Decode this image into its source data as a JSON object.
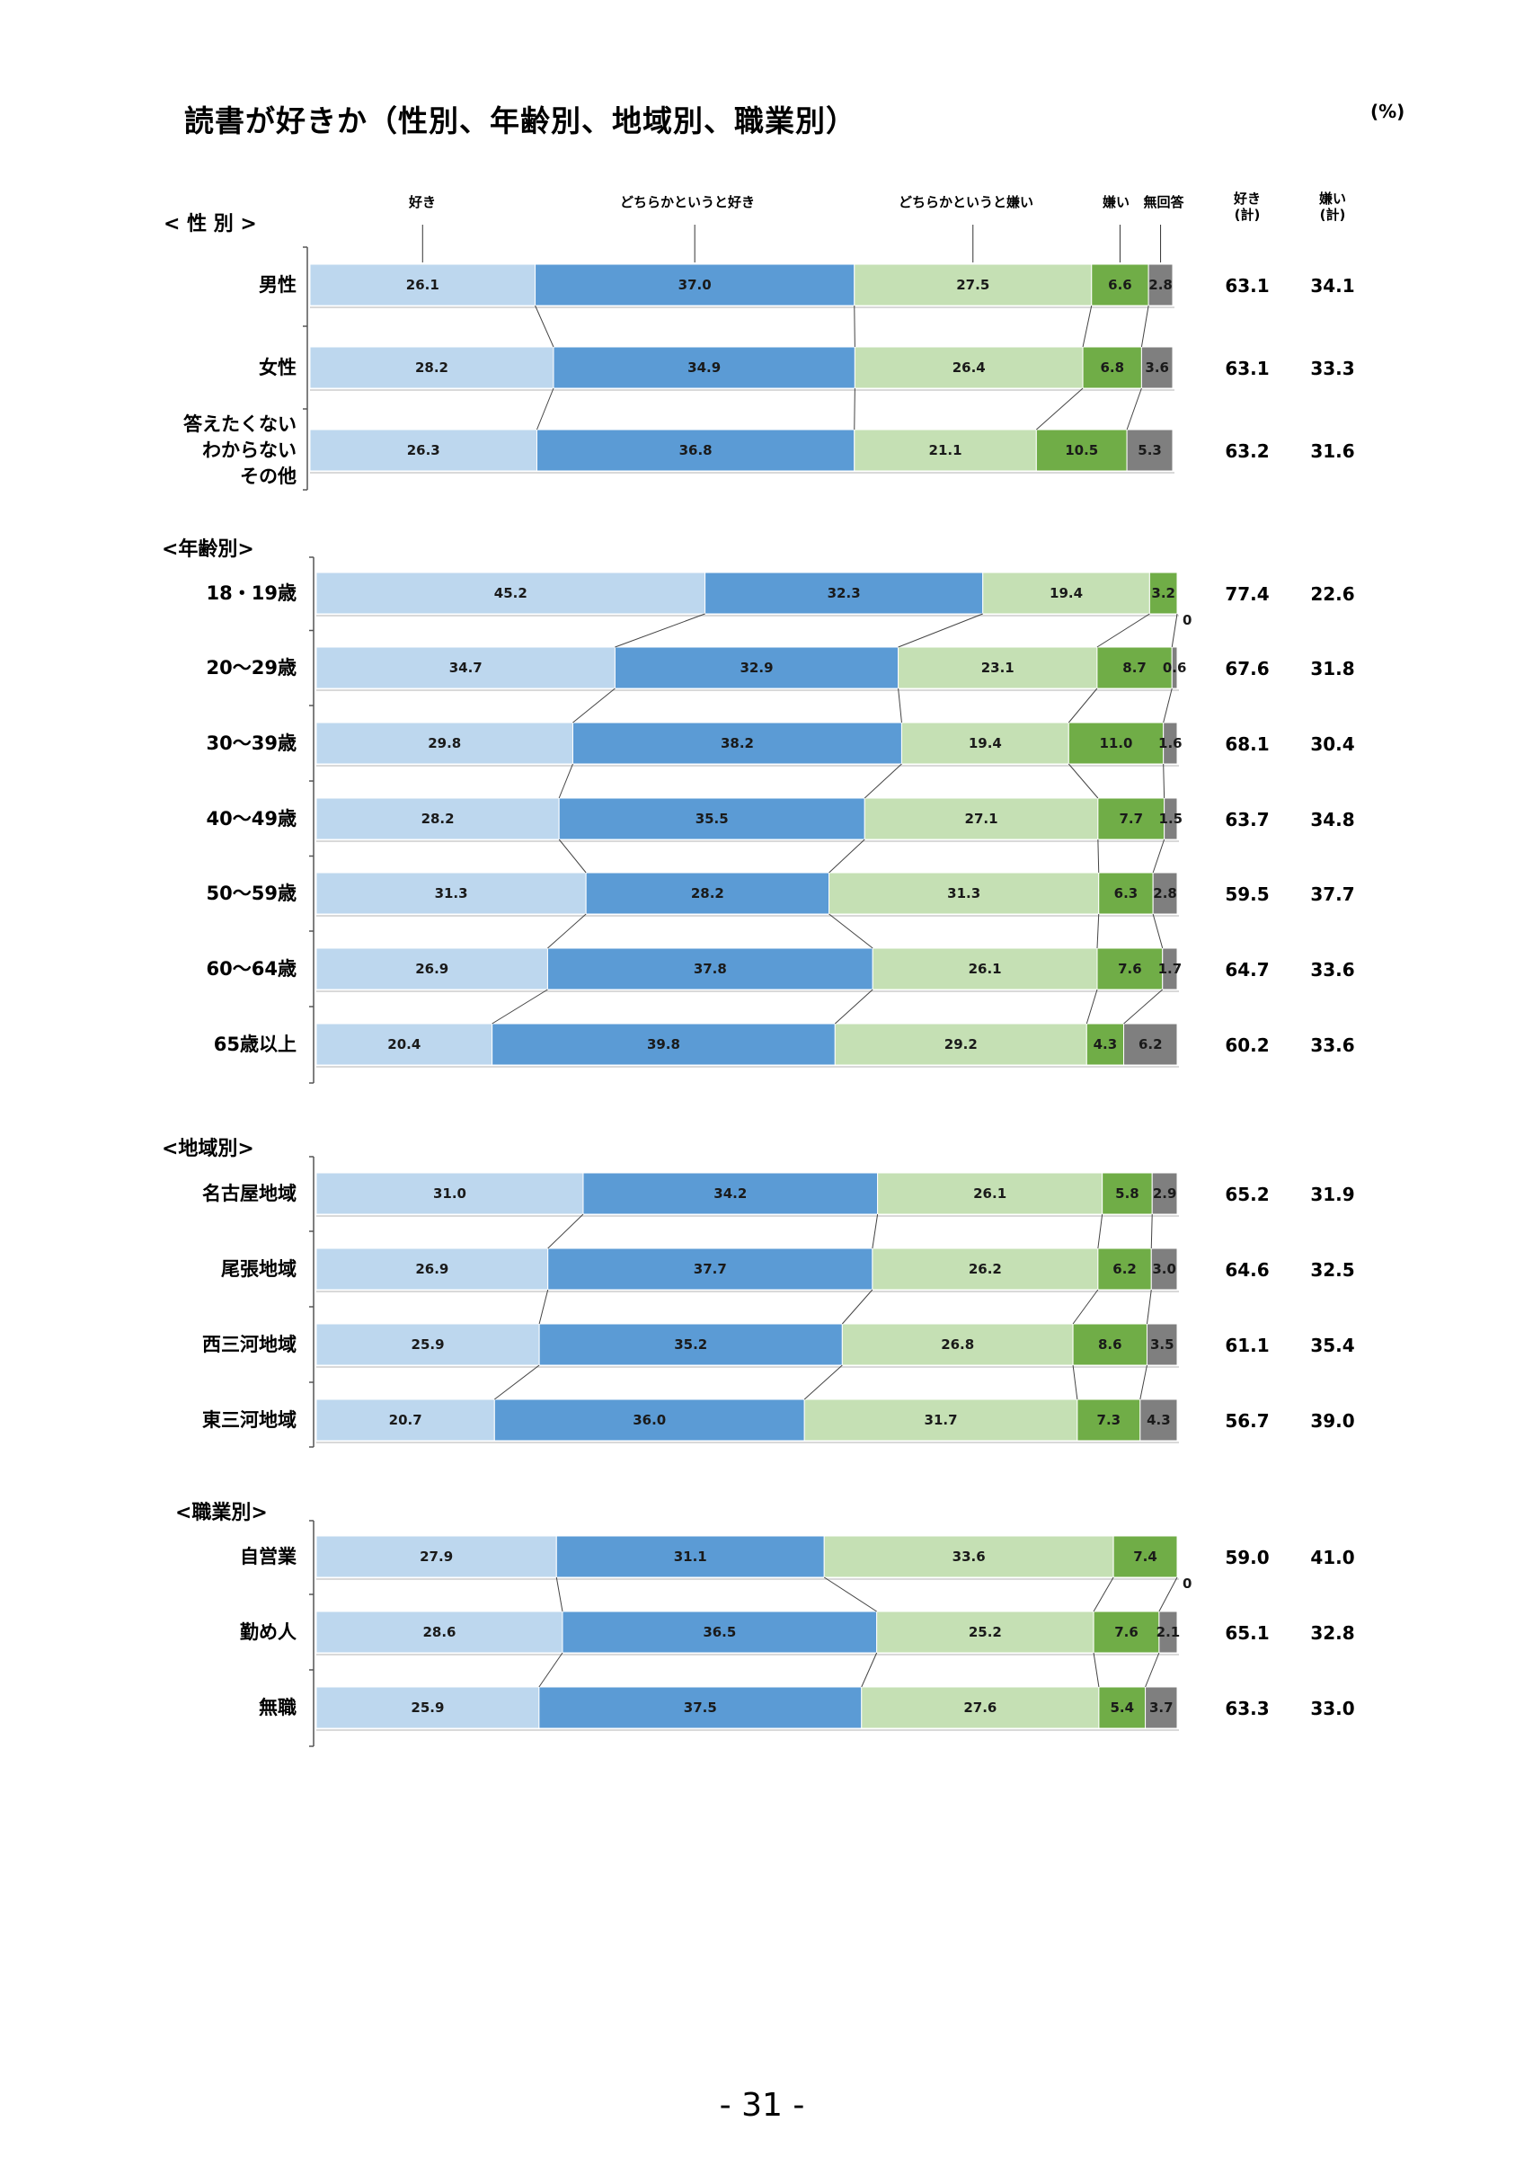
{
  "page": {
    "title": "読書が好きか（性別、年齢別、地域別、職業別）",
    "unit": "(%)",
    "page_number": "- 31 -"
  },
  "chart_data": {
    "type": "bar",
    "orientation": "horizontal",
    "stacked": true,
    "percent_stacked": true,
    "title": "読書が好きか（性別、年齢別、地域別、職業別）",
    "unit": "%",
    "categories": [
      "好き",
      "どちらかというと好き",
      "どちらかというと嫌い",
      "嫌い",
      "無回答"
    ],
    "colors": [
      "#bdd7ee",
      "#5b9bd5",
      "#c5e0b4",
      "#70ad47",
      "#7f7f7f"
    ],
    "summary_headers": [
      [
        "好き",
        "(計)"
      ],
      [
        "嫌い",
        "(計)"
      ]
    ],
    "groups": [
      {
        "title": "< 性 別 >",
        "rows": [
          {
            "label": [
              "男性"
            ],
            "values": [
              26.1,
              37.0,
              27.5,
              6.6,
              2.8
            ],
            "value_labels": [
              "26.1",
              "37.0",
              "27.5",
              "6.6",
              "2.8"
            ],
            "like_total": "63.1",
            "dislike_total": "34.1"
          },
          {
            "label": [
              "女性"
            ],
            "values": [
              28.2,
              34.9,
              26.4,
              6.8,
              3.6
            ],
            "value_labels": [
              "28.2",
              "34.9",
              "26.4",
              "6.8",
              "3.6"
            ],
            "like_total": "63.1",
            "dislike_total": "33.3"
          },
          {
            "label": [
              "答えたくない",
              "わからない",
              "その他"
            ],
            "values": [
              26.3,
              36.8,
              21.1,
              10.5,
              5.3
            ],
            "value_labels": [
              "26.3",
              "36.8",
              "21.1",
              "10.5",
              "5.3"
            ],
            "like_total": "63.2",
            "dislike_total": "31.6"
          }
        ]
      },
      {
        "title": "<年齢別>",
        "rows": [
          {
            "label": [
              "18・19歳"
            ],
            "values": [
              45.2,
              32.3,
              19.4,
              3.2,
              0
            ],
            "value_labels": [
              "45.2",
              "32.3",
              "19.4",
              "3.2",
              "0"
            ],
            "like_total": "77.4",
            "dislike_total": "22.6"
          },
          {
            "label": [
              "20～29歳"
            ],
            "values": [
              34.7,
              32.9,
              23.1,
              8.7,
              0.6
            ],
            "value_labels": [
              "34.7",
              "32.9",
              "23.1",
              "8.7",
              "0.6"
            ],
            "like_total": "67.6",
            "dislike_total": "31.8"
          },
          {
            "label": [
              "30～39歳"
            ],
            "values": [
              29.8,
              38.2,
              19.4,
              11.0,
              1.6
            ],
            "value_labels": [
              "29.8",
              "38.2",
              "19.4",
              "11.0",
              "1.6"
            ],
            "like_total": "68.1",
            "dislike_total": "30.4"
          },
          {
            "label": [
              "40～49歳"
            ],
            "values": [
              28.2,
              35.5,
              27.1,
              7.7,
              1.5
            ],
            "value_labels": [
              "28.2",
              "35.5",
              "27.1",
              "7.7",
              "1.5"
            ],
            "like_total": "63.7",
            "dislike_total": "34.8"
          },
          {
            "label": [
              "50～59歳"
            ],
            "values": [
              31.3,
              28.2,
              31.3,
              6.3,
              2.8
            ],
            "value_labels": [
              "31.3",
              "28.2",
              "31.3",
              "6.3",
              "2.8"
            ],
            "like_total": "59.5",
            "dislike_total": "37.7"
          },
          {
            "label": [
              "60～64歳"
            ],
            "values": [
              26.9,
              37.8,
              26.1,
              7.6,
              1.7
            ],
            "value_labels": [
              "26.9",
              "37.8",
              "26.1",
              "7.6",
              "1.7"
            ],
            "like_total": "64.7",
            "dislike_total": "33.6"
          },
          {
            "label": [
              "65歳以上"
            ],
            "values": [
              20.4,
              39.8,
              29.2,
              4.3,
              6.2
            ],
            "value_labels": [
              "20.4",
              "39.8",
              "29.2",
              "4.3",
              "6.2"
            ],
            "like_total": "60.2",
            "dislike_total": "33.6"
          }
        ]
      },
      {
        "title": "<地域別>",
        "rows": [
          {
            "label": [
              "名古屋地域"
            ],
            "values": [
              31.0,
              34.2,
              26.1,
              5.8,
              2.9
            ],
            "value_labels": [
              "31.0",
              "34.2",
              "26.1",
              "5.8",
              "2.9"
            ],
            "like_total": "65.2",
            "dislike_total": "31.9"
          },
          {
            "label": [
              "尾張地域"
            ],
            "values": [
              26.9,
              37.7,
              26.2,
              6.2,
              3.0
            ],
            "value_labels": [
              "26.9",
              "37.7",
              "26.2",
              "6.2",
              "3.0"
            ],
            "like_total": "64.6",
            "dislike_total": "32.5"
          },
          {
            "label": [
              "西三河地域"
            ],
            "values": [
              25.9,
              35.2,
              26.8,
              8.6,
              3.5
            ],
            "value_labels": [
              "25.9",
              "35.2",
              "26.8",
              "8.6",
              "3.5"
            ],
            "like_total": "61.1",
            "dislike_total": "35.4"
          },
          {
            "label": [
              "東三河地域"
            ],
            "values": [
              20.7,
              36.0,
              31.7,
              7.3,
              4.3
            ],
            "value_labels": [
              "20.7",
              "36.0",
              "31.7",
              "7.3",
              "4.3"
            ],
            "like_total": "56.7",
            "dislike_total": "39.0"
          }
        ]
      },
      {
        "title": "<職業別>",
        "rows": [
          {
            "label": [
              "自営業"
            ],
            "values": [
              27.9,
              31.1,
              33.6,
              7.4,
              0
            ],
            "value_labels": [
              "27.9",
              "31.1",
              "33.6",
              "7.4",
              "0"
            ],
            "like_total": "59.0",
            "dislike_total": "41.0"
          },
          {
            "label": [
              "勤め人"
            ],
            "values": [
              28.6,
              36.5,
              25.2,
              7.6,
              2.1
            ],
            "value_labels": [
              "28.6",
              "36.5",
              "25.2",
              "7.6",
              "2.1"
            ],
            "like_total": "65.1",
            "dislike_total": "32.8"
          },
          {
            "label": [
              "無職"
            ],
            "values": [
              25.9,
              37.5,
              27.6,
              5.4,
              3.7
            ],
            "value_labels": [
              "25.9",
              "37.5",
              "27.6",
              "5.4",
              "3.7"
            ],
            "like_total": "63.3",
            "dislike_total": "33.0"
          }
        ]
      }
    ]
  }
}
